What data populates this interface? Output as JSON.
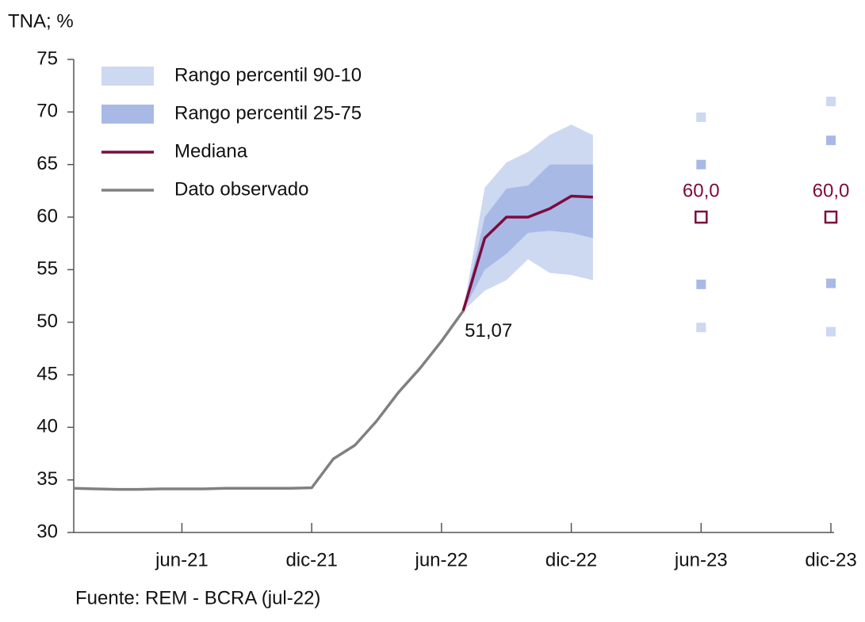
{
  "chart_data": {
    "type": "line",
    "y_label": "TNA; %",
    "source": "Fuente: REM - BCRA (jul-22)",
    "x": [
      "2021-01",
      "2021-02",
      "2021-03",
      "2021-04",
      "2021-05",
      "2021-06",
      "2021-07",
      "2021-08",
      "2021-09",
      "2021-10",
      "2021-11",
      "2021-12",
      "2022-01",
      "2022-02",
      "2022-03",
      "2022-04",
      "2022-05",
      "2022-06",
      "2022-07",
      "2022-08",
      "2022-09",
      "2022-10",
      "2022-11",
      "2022-12",
      "2023-01"
    ],
    "xlim": [
      "2021-01",
      "2023-12"
    ],
    "xticks": [
      {
        "value": "2021-06",
        "label": "jun-21"
      },
      {
        "value": "2021-12",
        "label": "dic-21"
      },
      {
        "value": "2022-06",
        "label": "jun-22"
      },
      {
        "value": "2022-12",
        "label": "dic-22"
      },
      {
        "value": "2023-06",
        "label": "jun-23"
      },
      {
        "value": "2023-12",
        "label": "dic-23"
      }
    ],
    "ylim": [
      30,
      75
    ],
    "yticks": [
      30,
      35,
      40,
      45,
      50,
      55,
      60,
      65,
      70,
      75
    ],
    "horizon_x": [
      "2023-06",
      "2023-12"
    ],
    "series": [
      {
        "name": "Rango percentil 90-10",
        "color": "#cdd8f1",
        "kind": "band",
        "lower": [
          null,
          null,
          null,
          null,
          null,
          null,
          null,
          null,
          null,
          null,
          null,
          null,
          null,
          null,
          null,
          null,
          null,
          null,
          51.07,
          53,
          54,
          56,
          54.7,
          54.5,
          54
        ],
        "upper": [
          null,
          null,
          null,
          null,
          null,
          null,
          null,
          null,
          null,
          null,
          null,
          null,
          null,
          null,
          null,
          null,
          null,
          null,
          51.07,
          62.8,
          65.2,
          66.2,
          67.8,
          68.8,
          67.8
        ],
        "horizon_lower": [
          49.5,
          49.1
        ],
        "horizon_upper": [
          69.5,
          71
        ]
      },
      {
        "name": "Rango percentil 25-75",
        "color": "#a8b9e6",
        "kind": "band",
        "lower": [
          null,
          null,
          null,
          null,
          null,
          null,
          null,
          null,
          null,
          null,
          null,
          null,
          null,
          null,
          null,
          null,
          null,
          null,
          51.07,
          55,
          56.5,
          58.5,
          58.7,
          58.5,
          58
        ],
        "upper": [
          null,
          null,
          null,
          null,
          null,
          null,
          null,
          null,
          null,
          null,
          null,
          null,
          null,
          null,
          null,
          null,
          null,
          null,
          51.07,
          60,
          62.7,
          63,
          65,
          65,
          65
        ],
        "horizon_lower": [
          53.6,
          53.7
        ],
        "horizon_upper": [
          65,
          67.3
        ]
      },
      {
        "name": "Mediana",
        "color": "#7d0b3d",
        "kind": "line",
        "values": [
          null,
          null,
          null,
          null,
          null,
          null,
          null,
          null,
          null,
          null,
          null,
          null,
          null,
          null,
          null,
          null,
          null,
          null,
          51.07,
          58,
          60,
          60,
          60.8,
          62,
          61.9
        ],
        "horizon_values": [
          60,
          60
        ],
        "horizon_value_labels": [
          "60,0",
          "60,0"
        ]
      },
      {
        "name": "Dato observado",
        "color": "#808080",
        "kind": "line",
        "values": [
          34.2,
          34.15,
          34.1,
          34.1,
          34.15,
          34.15,
          34.15,
          34.2,
          34.2,
          34.2,
          34.2,
          34.25,
          37,
          38.3,
          40.6,
          43.3,
          45.6,
          48.2,
          51.07,
          null,
          null,
          null,
          null,
          null,
          null
        ]
      }
    ],
    "annotations": [
      {
        "text": "51,07",
        "x": "2022-07",
        "y": 51.07
      }
    ]
  }
}
